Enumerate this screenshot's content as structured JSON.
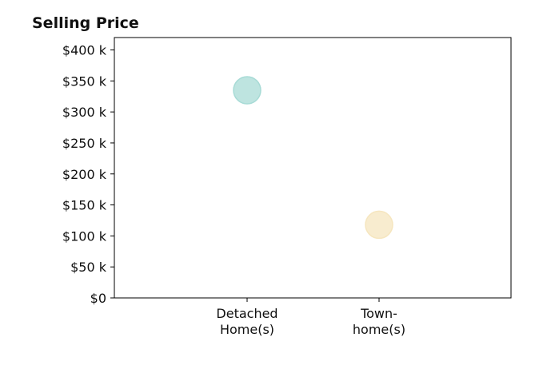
{
  "chart_data": {
    "type": "scatter",
    "title": "Selling Price",
    "xlabel": "",
    "ylabel": "",
    "categories": [
      [
        "Detached",
        "Home(s)"
      ],
      [
        "Town-",
        "home(s)"
      ]
    ],
    "points": [
      {
        "category_index": 0,
        "value": 335000,
        "color": "#a8dbd6"
      },
      {
        "category_index": 1,
        "value": 118000,
        "color": "#f6e6bf"
      }
    ],
    "ylim": [
      0,
      420000
    ],
    "y_ticks": [
      {
        "value": 0,
        "label": "$0"
      },
      {
        "value": 50000,
        "label": "$50 k"
      },
      {
        "value": 100000,
        "label": "$100 k"
      },
      {
        "value": 150000,
        "label": "$150 k"
      },
      {
        "value": 200000,
        "label": "$200 k"
      },
      {
        "value": 250000,
        "label": "$250 k"
      },
      {
        "value": 300000,
        "label": "$300 k"
      },
      {
        "value": 350000,
        "label": "$350 k"
      },
      {
        "value": 400000,
        "label": "$400 k"
      }
    ],
    "grid": false,
    "legend": "none"
  }
}
